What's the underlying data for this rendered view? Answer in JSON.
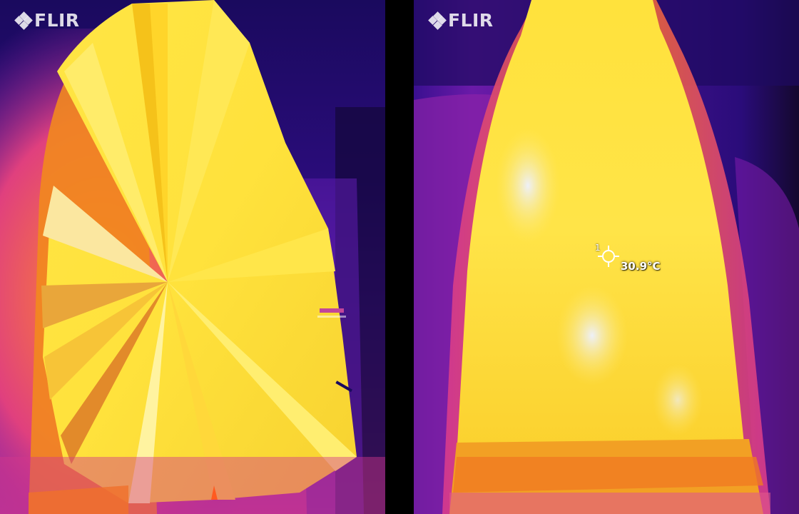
{
  "left_image": {
    "logo_text": "FLIR",
    "logo_icon": "flir-diamond-icon"
  },
  "right_image": {
    "logo_text": "FLIR",
    "logo_icon": "flir-diamond-icon",
    "spot_meter": {
      "index": "1",
      "temperature": "30.9°C",
      "icon": "crosshair-icon"
    }
  },
  "palette": {
    "cold": "#1a0a5e",
    "cool": "#5a1aa8",
    "mid": "#c23aa0",
    "warm": "#f28a1e",
    "hot": "#ffe23c",
    "hottest": "#fffbe0"
  }
}
